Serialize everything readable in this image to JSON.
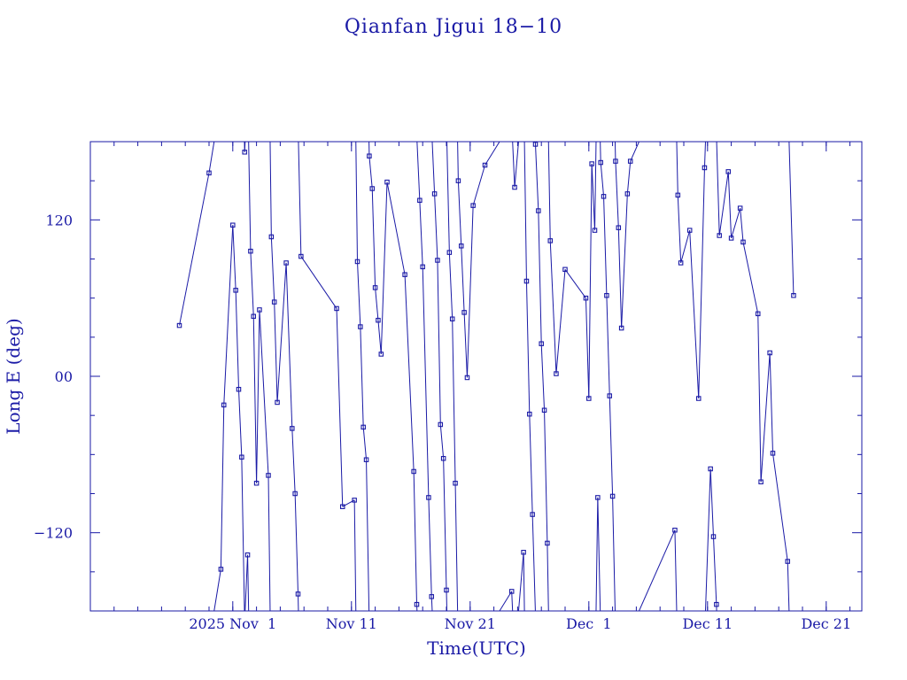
{
  "chart_data": {
    "type": "line",
    "title": "Qianfan Jigui 18−10",
    "xlabel": "Time(UTC)",
    "ylabel": "Long E (deg)",
    "xlim": [
      "2025-10-20T00:00",
      "2025-12-24T00:00"
    ],
    "ylim": [
      -180,
      180
    ],
    "x_tick_labels": [
      {
        "date": "2025-11-01",
        "label": "2025 Nov  1"
      },
      {
        "date": "2025-11-11",
        "label": "Nov 11"
      },
      {
        "date": "2025-11-21",
        "label": "Nov 21"
      },
      {
        "date": "2025-12-01",
        "label": "Dec  1"
      },
      {
        "date": "2025-12-11",
        "label": "Dec 11"
      },
      {
        "date": "2025-12-21",
        "label": "Dec 21"
      }
    ],
    "y_tick_labels": [
      {
        "value": 120,
        "label": "120"
      },
      {
        "value": 0,
        "label": "00"
      },
      {
        "value": -120,
        "label": "−120"
      }
    ],
    "longitude_wraps_at": 180,
    "series": [
      {
        "values": [
          [
            "2025-10-27T12:00",
            39
          ],
          [
            "2025-10-30T00:00",
            156
          ],
          [
            "2025-10-31T00:00",
            -148
          ],
          [
            "2025-10-31T06:00",
            -22
          ],
          [
            "2025-11-01T00:00",
            116
          ],
          [
            "2025-11-01T06:00",
            66
          ],
          [
            "2025-11-01T12:00",
            -10
          ],
          [
            "2025-11-01T18:00",
            -62
          ],
          [
            "2025-11-02T00:00",
            172
          ],
          [
            "2025-11-02T06:00",
            -137
          ],
          [
            "2025-11-02T12:00",
            96
          ],
          [
            "2025-11-02T18:00",
            46
          ],
          [
            "2025-11-03T00:00",
            -82
          ],
          [
            "2025-11-03T06:00",
            51
          ],
          [
            "2025-11-04T00:00",
            -76
          ],
          [
            "2025-11-04T06:00",
            107
          ],
          [
            "2025-11-04T12:00",
            57
          ],
          [
            "2025-11-04T18:00",
            -20
          ],
          [
            "2025-11-05T12:00",
            87
          ],
          [
            "2025-11-06T00:00",
            -40
          ],
          [
            "2025-11-06T06:00",
            -90
          ],
          [
            "2025-11-06T12:00",
            -167
          ],
          [
            "2025-11-06T18:00",
            92
          ],
          [
            "2025-11-09T18:00",
            52
          ],
          [
            "2025-11-10T06:00",
            -100
          ],
          [
            "2025-11-11T06:00",
            -95
          ],
          [
            "2025-11-11T12:00",
            88
          ],
          [
            "2025-11-11T18:00",
            38
          ],
          [
            "2025-11-12T00:00",
            -39
          ],
          [
            "2025-11-12T06:00",
            -64
          ],
          [
            "2025-11-12T12:00",
            169
          ],
          [
            "2025-11-12T18:00",
            144
          ],
          [
            "2025-11-13T00:00",
            68
          ],
          [
            "2025-11-13T06:00",
            43
          ],
          [
            "2025-11-13T12:00",
            17
          ],
          [
            "2025-11-14T00:00",
            149
          ],
          [
            "2025-11-15T12:00",
            78
          ],
          [
            "2025-11-16T06:00",
            -73
          ],
          [
            "2025-11-16T12:00",
            -175
          ],
          [
            "2025-11-16T18:00",
            135
          ],
          [
            "2025-11-17T00:00",
            84
          ],
          [
            "2025-11-17T12:00",
            -93
          ],
          [
            "2025-11-17T18:00",
            -169
          ],
          [
            "2025-11-18T00:00",
            140
          ],
          [
            "2025-11-18T06:00",
            89
          ],
          [
            "2025-11-18T12:00",
            -37
          ],
          [
            "2025-11-18T18:00",
            -63
          ],
          [
            "2025-11-19T00:00",
            -164
          ],
          [
            "2025-11-19T06:00",
            95
          ],
          [
            "2025-11-19T12:00",
            44
          ],
          [
            "2025-11-19T18:00",
            -82
          ],
          [
            "2025-11-20T00:00",
            150
          ],
          [
            "2025-11-20T06:00",
            100
          ],
          [
            "2025-11-20T12:00",
            49
          ],
          [
            "2025-11-20T18:00",
            -1
          ],
          [
            "2025-11-21T06:00",
            131
          ],
          [
            "2025-11-22T06:00",
            162
          ],
          [
            "2025-11-24T12:00",
            -165
          ],
          [
            "2025-11-24T18:00",
            145
          ],
          [
            "2025-11-25T12:00",
            -135
          ],
          [
            "2025-11-25T18:00",
            73
          ],
          [
            "2025-11-26T00:00",
            -29
          ],
          [
            "2025-11-26T06:00",
            -106
          ],
          [
            "2025-11-26T12:00",
            178
          ],
          [
            "2025-11-26T18:00",
            127
          ],
          [
            "2025-11-27T00:00",
            25
          ],
          [
            "2025-11-27T06:00",
            -26
          ],
          [
            "2025-11-27T12:00",
            -128
          ],
          [
            "2025-11-27T18:00",
            104
          ],
          [
            "2025-11-28T06:00",
            2
          ],
          [
            "2025-11-29T00:00",
            82
          ],
          [
            "2025-11-30T18:00",
            60
          ],
          [
            "2025-12-01T00:00",
            -17
          ],
          [
            "2025-12-01T06:00",
            163
          ],
          [
            "2025-12-01T12:00",
            112
          ],
          [
            "2025-12-01T18:00",
            -93
          ],
          [
            "2025-12-02T00:00",
            164
          ],
          [
            "2025-12-02T06:00",
            138
          ],
          [
            "2025-12-02T12:00",
            62
          ],
          [
            "2025-12-02T18:00",
            -15
          ],
          [
            "2025-12-03T00:00",
            -92
          ],
          [
            "2025-12-03T06:00",
            165
          ],
          [
            "2025-12-03T12:00",
            114
          ],
          [
            "2025-12-03T18:00",
            37
          ],
          [
            "2025-12-04T06:00",
            140
          ],
          [
            "2025-12-04T12:00",
            165
          ],
          [
            "2025-12-08T06:00",
            -118
          ],
          [
            "2025-12-08T12:00",
            139
          ],
          [
            "2025-12-08T18:00",
            87
          ],
          [
            "2025-12-09T12:00",
            112
          ],
          [
            "2025-12-10T06:00",
            -17
          ],
          [
            "2025-12-10T18:00",
            160
          ],
          [
            "2025-12-11T06:00",
            -71
          ],
          [
            "2025-12-11T12:00",
            -123
          ],
          [
            "2025-12-11T18:00",
            -175
          ],
          [
            "2025-12-12T00:00",
            108
          ],
          [
            "2025-12-12T18:00",
            157
          ],
          [
            "2025-12-13T00:00",
            106
          ],
          [
            "2025-12-13T18:00",
            129
          ],
          [
            "2025-12-14T00:00",
            103
          ],
          [
            "2025-12-15T06:00",
            48
          ],
          [
            "2025-12-15T12:00",
            -81
          ],
          [
            "2025-12-16T06:00",
            18
          ],
          [
            "2025-12-16T12:00",
            -59
          ],
          [
            "2025-12-17T18:00",
            -142
          ],
          [
            "2025-12-18T06:00",
            62
          ]
        ]
      }
    ]
  }
}
